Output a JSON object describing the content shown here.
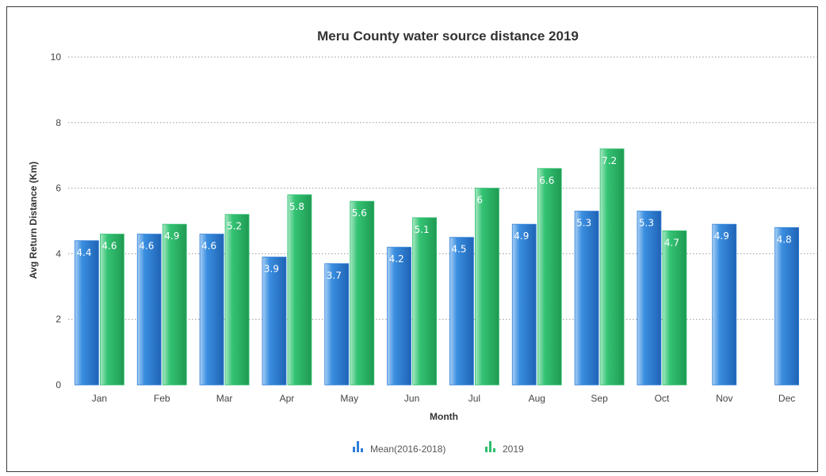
{
  "chart_data": {
    "type": "bar",
    "title": "Meru County water source distance 2019",
    "xlabel": "Month",
    "ylabel": "Avg Return Distance (Km)",
    "ylim": [
      0,
      10
    ],
    "yticks": [
      0,
      2,
      4,
      6,
      8,
      10
    ],
    "grid": true,
    "legend_position": "bottom",
    "categories": [
      "Jan",
      "Feb",
      "Mar",
      "Apr",
      "May",
      "Jun",
      "Jul",
      "Aug",
      "Sep",
      "Oct",
      "Nov",
      "Dec"
    ],
    "series": [
      {
        "name": "Mean(2016-2018)",
        "color": "#2f7ed8",
        "values": [
          4.4,
          4.6,
          4.6,
          3.9,
          3.7,
          4.2,
          4.5,
          4.9,
          5.3,
          5.3,
          4.9,
          4.8
        ]
      },
      {
        "name": "2019",
        "color": "#2fbf6f",
        "values": [
          4.6,
          4.9,
          5.2,
          5.8,
          5.6,
          5.1,
          6,
          6.6,
          7.2,
          4.7,
          null,
          null
        ]
      }
    ]
  }
}
